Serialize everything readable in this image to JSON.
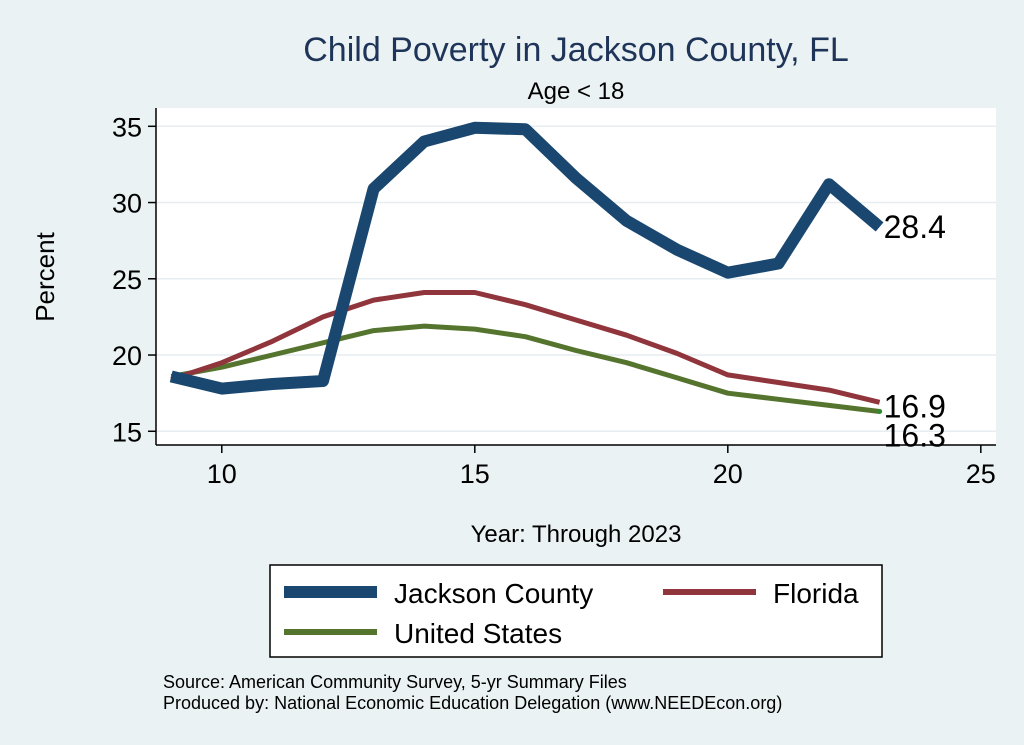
{
  "chart_data": {
    "type": "line",
    "title": "Child Poverty in Jackson County, FL",
    "subtitle": "Age < 18",
    "xlabel": "Year: Through 2023",
    "ylabel": "Percent",
    "xlim": [
      8.7,
      25.3
    ],
    "ylim": [
      14.1,
      36.2
    ],
    "xticks": [
      10,
      15,
      20,
      25
    ],
    "yticks": [
      15,
      20,
      25,
      30,
      35
    ],
    "grid": true,
    "legend_position": "bottom",
    "x": [
      9,
      10,
      11,
      12,
      13,
      14,
      15,
      16,
      17,
      18,
      19,
      20,
      21,
      22,
      23
    ],
    "series": [
      {
        "name": "Jackson County",
        "color": "#1a476f",
        "values": [
          18.6,
          17.8,
          18.1,
          18.3,
          30.9,
          34.0,
          34.9,
          34.8,
          31.6,
          28.8,
          26.9,
          25.4,
          26.0,
          31.2,
          28.4
        ],
        "end_label": "28.4"
      },
      {
        "name": "Florida",
        "color": "#90353b",
        "values": [
          18.4,
          19.5,
          20.9,
          22.5,
          23.6,
          24.1,
          24.1,
          23.3,
          22.3,
          21.3,
          20.1,
          18.7,
          18.2,
          17.7,
          16.9
        ],
        "end_label": "16.9"
      },
      {
        "name": "United States",
        "color": "#55752f",
        "values": [
          18.6,
          19.2,
          20.0,
          20.8,
          21.6,
          21.9,
          21.7,
          21.2,
          20.3,
          19.5,
          18.5,
          17.5,
          17.1,
          16.7,
          16.3
        ],
        "end_label": "16.3"
      }
    ],
    "source_lines": [
      "Source: American Community Survey, 5-yr Summary Files",
      "Produced by: National Economic Education Delegation (www.NEEDEcon.org)"
    ]
  }
}
